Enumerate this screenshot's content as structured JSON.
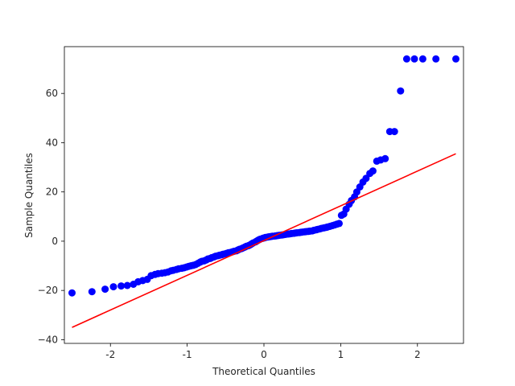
{
  "chart_data": {
    "type": "scatter",
    "title": "",
    "xlabel": "Theoretical Quantiles",
    "ylabel": "Sample Quantiles",
    "xlim": [
      -2.6,
      2.6
    ],
    "ylim": [
      -41.5,
      79
    ],
    "xticks": [
      -2,
      -1,
      0,
      1,
      2
    ],
    "xtick_labels": [
      "-2",
      "-1",
      "0",
      "1",
      "2"
    ],
    "yticks": [
      -40,
      -20,
      0,
      20,
      40,
      60
    ],
    "ytick_labels": [
      "−40",
      "−20",
      "0",
      "20",
      "40",
      "60"
    ],
    "grid": false,
    "legend": "none",
    "colors": {
      "points": "#0000ff",
      "reference_line": "#ff0000"
    },
    "reference_line": {
      "x": [
        -2.5,
        2.5
      ],
      "y": [
        -35,
        35.5
      ]
    },
    "series": [
      {
        "x": [
          -2.5,
          -2.24,
          -2.07,
          -1.96,
          -1.86,
          -1.78,
          -1.7,
          -1.64,
          -1.58,
          -1.52,
          -1.47,
          -1.42,
          -1.38,
          -1.33,
          -1.29,
          -1.25,
          -1.21,
          -1.18,
          -1.14,
          -1.11,
          -1.07,
          -1.04,
          -1.01,
          -0.98,
          -0.95,
          -0.92,
          -0.89,
          -0.86,
          -0.83,
          -0.81,
          -0.78,
          -0.75,
          -0.73,
          -0.7,
          -0.68,
          -0.65,
          -0.63,
          -0.6,
          -0.58,
          -0.55,
          -0.53,
          -0.5,
          -0.48,
          -0.46,
          -0.43,
          -0.41,
          -0.39,
          -0.36,
          -0.34,
          -0.32,
          -0.29,
          -0.27,
          -0.25,
          -0.23,
          -0.2,
          -0.18,
          -0.16,
          -0.14,
          -0.11,
          -0.09,
          -0.07,
          -0.05,
          -0.02,
          0.0,
          0.02,
          0.05,
          0.07,
          0.09,
          0.11,
          0.14,
          0.16,
          0.18,
          0.2,
          0.23,
          0.25,
          0.27,
          0.29,
          0.32,
          0.34,
          0.36,
          0.39,
          0.41,
          0.43,
          0.46,
          0.48,
          0.5,
          0.53,
          0.55,
          0.58,
          0.6,
          0.63,
          0.65,
          0.68,
          0.7,
          0.73,
          0.75,
          0.78,
          0.81,
          0.83,
          0.86,
          0.89,
          0.92,
          0.95,
          0.98,
          1.01,
          1.04,
          1.07,
          1.11,
          1.14,
          1.18,
          1.21,
          1.25,
          1.29,
          1.33,
          1.38,
          1.42,
          1.47,
          1.52,
          1.58,
          1.64,
          1.7,
          1.78,
          1.86,
          1.96,
          2.07,
          2.24,
          2.5
        ],
        "y": [
          -21,
          -20.5,
          -19.5,
          -18.5,
          -18.2,
          -18,
          -17.5,
          -16.5,
          -16,
          -15.5,
          -14,
          -13.5,
          -13.2,
          -13,
          -12.8,
          -12.5,
          -12,
          -11.8,
          -11.5,
          -11.2,
          -11,
          -10.8,
          -10.5,
          -10.2,
          -10,
          -9.8,
          -9.5,
          -9,
          -8.5,
          -8.2,
          -8,
          -7.6,
          -7.2,
          -7,
          -6.7,
          -6.4,
          -6.1,
          -5.9,
          -5.7,
          -5.5,
          -5.3,
          -5.1,
          -4.9,
          -4.7,
          -4.5,
          -4.3,
          -4.1,
          -3.9,
          -3.6,
          -3.3,
          -3,
          -2.7,
          -2.4,
          -2.1,
          -1.8,
          -1.5,
          -1.1,
          -0.7,
          -0.3,
          0.1,
          0.5,
          0.8,
          1.1,
          1.3,
          1.5,
          1.7,
          1.8,
          1.9,
          2.0,
          2.1,
          2.2,
          2.3,
          2.4,
          2.5,
          2.6,
          2.7,
          2.8,
          2.9,
          3.0,
          3.1,
          3.2,
          3.3,
          3.4,
          3.5,
          3.6,
          3.7,
          3.8,
          3.9,
          4.0,
          4.1,
          4.2,
          4.4,
          4.6,
          4.8,
          5.0,
          5.2,
          5.4,
          5.6,
          5.8,
          6.0,
          6.3,
          6.6,
          6.9,
          7.2,
          10.5,
          11,
          13,
          15,
          16.5,
          18,
          20,
          22,
          24,
          25.5,
          27.5,
          28.5,
          32.5,
          33,
          33.5,
          44.5,
          44.5,
          61,
          74,
          74,
          74,
          74,
          74
        ],
        "y_note": ""
      }
    ]
  }
}
